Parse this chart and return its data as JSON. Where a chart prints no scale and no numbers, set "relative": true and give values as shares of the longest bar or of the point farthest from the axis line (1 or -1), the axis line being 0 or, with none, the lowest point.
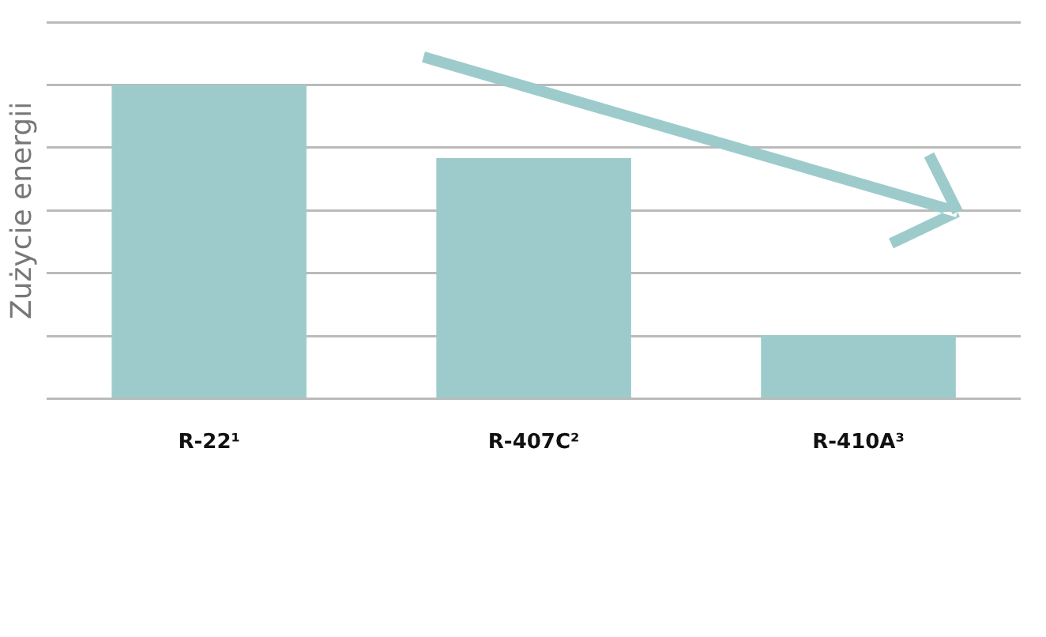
{
  "chart_data": {
    "type": "bar",
    "ylabel": "Zużycie energii",
    "relative": true,
    "grid": "y",
    "categories": [
      "R-22¹",
      "R-407C²",
      "R-410A³"
    ],
    "values": [
      1,
      0.767,
      0.203
    ],
    "color": "#9dcbcc"
  }
}
